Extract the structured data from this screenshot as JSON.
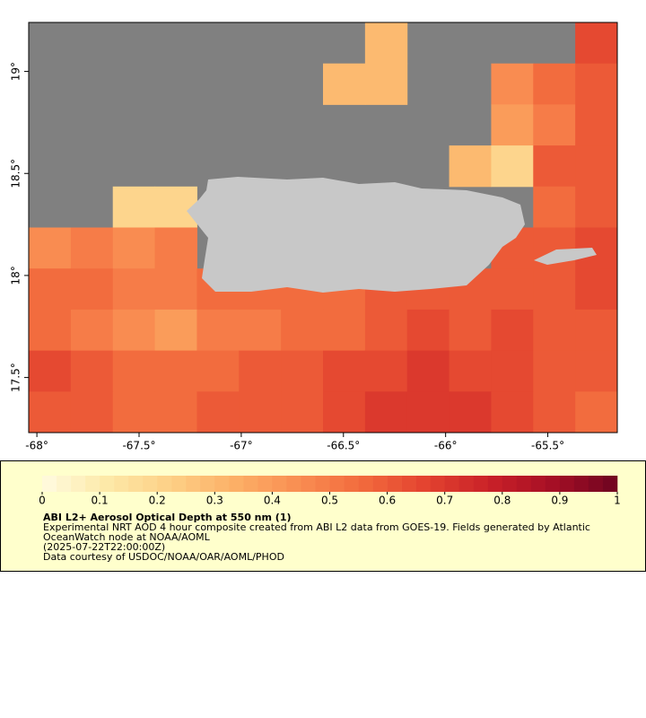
{
  "chart_data": {
    "type": "heatmap",
    "title": "ABI L2+ Aerosol Optical Depth at 550 nm (1)",
    "description": "Experimental NRT AOD 4 hour composite created from ABI L2 data from GOES-19. Fields generated by Atlantic OceanWatch node at NOAA/AOML",
    "time": "(2025-07-22T22:00:00Z)",
    "credit": "Data courtesy of USDOC/NOAA/OAR/AOML/PHOD",
    "xlim": [
      -68.04,
      -65.16
    ],
    "ylim": [
      17.23,
      19.24
    ],
    "xticks": [
      {
        "value": -68,
        "label": "-68°"
      },
      {
        "value": -67.5,
        "label": "-67.5°"
      },
      {
        "value": -67,
        "label": "-67°"
      },
      {
        "value": -66.5,
        "label": "-66.5°"
      },
      {
        "value": -66,
        "label": "-66°"
      },
      {
        "value": -65.5,
        "label": "-65.5°"
      }
    ],
    "yticks": [
      {
        "value": 17.5,
        "label": "17.5°"
      },
      {
        "value": 18,
        "label": "18°"
      },
      {
        "value": 18.5,
        "label": "18.5°"
      },
      {
        "value": 19,
        "label": "19°"
      }
    ],
    "z": [
      [
        null,
        null,
        null,
        null,
        null,
        null,
        null,
        null,
        0.3,
        null,
        null,
        null,
        null,
        0.65
      ],
      [
        null,
        null,
        null,
        null,
        null,
        null,
        null,
        0.3,
        0.3,
        null,
        null,
        0.45,
        0.55,
        0.6
      ],
      [
        null,
        null,
        null,
        null,
        null,
        null,
        null,
        null,
        null,
        null,
        null,
        0.4,
        0.5,
        0.6
      ],
      [
        null,
        null,
        null,
        null,
        null,
        null,
        null,
        null,
        null,
        null,
        0.3,
        0.2,
        0.6,
        0.6
      ],
      [
        null,
        null,
        0.2,
        0.2,
        null,
        null,
        null,
        null,
        null,
        null,
        null,
        null,
        0.55,
        0.6
      ],
      [
        0.45,
        0.5,
        0.45,
        0.5,
        null,
        null,
        null,
        null,
        null,
        null,
        null,
        0.6,
        0.6,
        0.65
      ],
      [
        0.55,
        0.55,
        0.5,
        0.5,
        0.55,
        0.55,
        0.55,
        0.55,
        0.6,
        0.6,
        0.6,
        0.6,
        0.6,
        0.65
      ],
      [
        0.55,
        0.5,
        0.45,
        0.4,
        0.5,
        0.5,
        0.55,
        0.55,
        0.6,
        0.65,
        0.6,
        0.65,
        0.6,
        0.6
      ],
      [
        0.65,
        0.6,
        0.55,
        0.55,
        0.55,
        0.6,
        0.6,
        0.65,
        0.65,
        0.7,
        0.65,
        0.65,
        0.6,
        0.6
      ],
      [
        0.6,
        0.6,
        0.55,
        0.55,
        0.6,
        0.6,
        0.6,
        0.65,
        0.7,
        0.7,
        0.7,
        0.65,
        0.6,
        0.55
      ]
    ],
    "missing_color": "#808080",
    "land_color": "#c8c8c8",
    "colorbar": {
      "lim": [
        0,
        1
      ],
      "ticks": [
        0,
        0.1,
        0.2,
        0.3,
        0.4,
        0.5,
        0.6,
        0.7,
        0.8,
        0.9,
        1
      ],
      "colors": [
        "#fffbe0",
        "#fde9a8",
        "#fdd086",
        "#fcb067",
        "#f98e52",
        "#f26a3d",
        "#e3432f",
        "#c92128",
        "#a50f25",
        "#6e0420"
      ]
    }
  }
}
